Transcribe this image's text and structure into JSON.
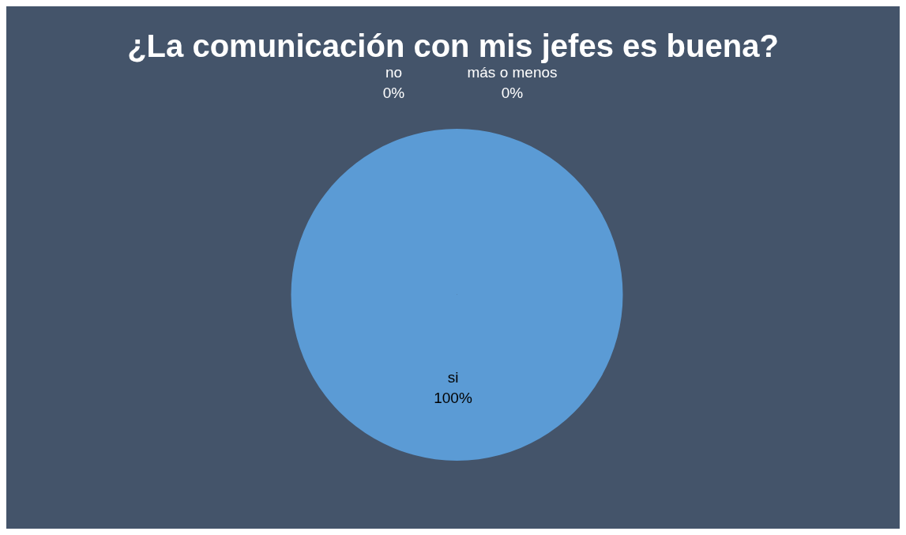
{
  "chart_data": {
    "type": "pie",
    "title": "¿La comunicación con mis jefes es buena?",
    "categories": [
      "si",
      "no",
      "más o menos"
    ],
    "values": [
      100,
      0,
      0
    ],
    "colors": [
      "#5b9bd5",
      "#ed7d31",
      "#a5a5a5"
    ],
    "value_labels": [
      "100%",
      "0%",
      "0%"
    ],
    "legend": false
  }
}
